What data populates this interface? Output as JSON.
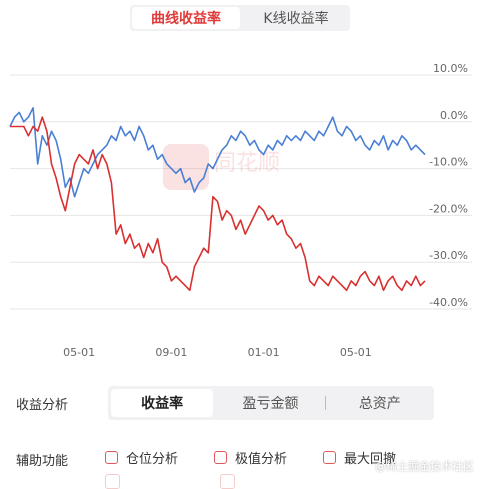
{
  "tabs": [
    {
      "label": "曲线收益率",
      "active": true
    },
    {
      "label": "K线收益率",
      "active": false
    }
  ],
  "chart_data": {
    "type": "line",
    "y_ticks": [
      "10.0%",
      "0.0%",
      "-10.0%",
      "-20.0%",
      "-30.0%",
      "-40.0%"
    ],
    "y_tick_values": [
      10,
      0,
      -10,
      -20,
      -30,
      -40
    ],
    "ylim": [
      -40,
      10
    ],
    "x_ticks": [
      "05-01",
      "09-01",
      "01-01",
      "05-01"
    ],
    "x_tick_positions": [
      3,
      7,
      11,
      15
    ],
    "xlim": [
      0,
      18
    ],
    "grid": true,
    "watermark_logo": "同花顺",
    "series": [
      {
        "color": "#4a7fd6",
        "x": [
          0,
          0.2,
          0.4,
          0.6,
          0.8,
          1.0,
          1.2,
          1.4,
          1.6,
          1.8,
          2.0,
          2.2,
          2.4,
          2.6,
          2.8,
          3.0,
          3.2,
          3.4,
          3.6,
          3.8,
          4.0,
          4.2,
          4.4,
          4.6,
          4.8,
          5.0,
          5.2,
          5.4,
          5.6,
          5.8,
          6.0,
          6.2,
          6.4,
          6.6,
          6.8,
          7.0,
          7.2,
          7.4,
          7.6,
          7.8,
          8.0,
          8.2,
          8.4,
          8.6,
          8.8,
          9.0,
          9.2,
          9.4,
          9.6,
          9.8,
          10.0,
          10.2,
          10.4,
          10.6,
          10.8,
          11.0,
          11.2,
          11.4,
          11.6,
          11.8,
          12.0,
          12.2,
          12.4,
          12.6,
          12.8,
          13.0,
          13.2,
          13.4,
          13.6,
          13.8,
          14.0,
          14.2,
          14.4,
          14.6,
          14.8,
          15.0,
          15.2,
          15.4,
          15.6,
          15.8,
          16.0,
          16.2,
          16.4,
          16.6,
          16.8,
          17.0,
          17.2,
          17.4,
          17.6,
          17.8,
          18.0
        ],
        "values": [
          -1,
          1,
          2,
          0,
          1,
          3,
          -9,
          -3,
          -5,
          -2,
          -4,
          -8,
          -14,
          -12,
          -16,
          -13,
          -10,
          -11,
          -9,
          -7,
          -6,
          -5,
          -3,
          -4,
          -1,
          -3,
          -2,
          -4,
          -1,
          -3,
          -6,
          -5,
          -8,
          -7,
          -9,
          -10,
          -11,
          -10,
          -13,
          -12,
          -15,
          -13,
          -12,
          -9,
          -10,
          -8,
          -6,
          -5,
          -3,
          -4,
          -2,
          -3,
          -5,
          -4,
          -6,
          -7,
          -5,
          -6,
          -4,
          -5,
          -3,
          -4,
          -3,
          -4,
          -2,
          -3,
          -4,
          -2,
          -3,
          -1,
          1,
          -2,
          -3,
          -1,
          -2,
          -4,
          -3,
          -5,
          -6,
          -4,
          -5,
          -3,
          -6,
          -4,
          -5,
          -3,
          -4,
          -6,
          -5,
          -6,
          -7
        ]
      },
      {
        "color": "#d93030",
        "x": [
          0,
          0.2,
          0.4,
          0.6,
          0.8,
          1.0,
          1.2,
          1.4,
          1.6,
          1.8,
          2.0,
          2.2,
          2.4,
          2.6,
          2.8,
          3.0,
          3.2,
          3.4,
          3.6,
          3.8,
          4.0,
          4.2,
          4.4,
          4.6,
          4.8,
          5.0,
          5.2,
          5.4,
          5.6,
          5.8,
          6.0,
          6.2,
          6.4,
          6.6,
          6.8,
          7.0,
          7.2,
          7.4,
          7.6,
          7.8,
          8.0,
          8.2,
          8.4,
          8.6,
          8.8,
          9.0,
          9.2,
          9.4,
          9.6,
          9.8,
          10.0,
          10.2,
          10.4,
          10.6,
          10.8,
          11.0,
          11.2,
          11.4,
          11.6,
          11.8,
          12.0,
          12.2,
          12.4,
          12.6,
          12.8,
          13.0,
          13.2,
          13.4,
          13.6,
          13.8,
          14.0,
          14.2,
          14.4,
          14.6,
          14.8,
          15.0,
          15.2,
          15.4,
          15.6,
          15.8,
          16.0,
          16.2,
          16.4,
          16.6,
          16.8,
          17.0,
          17.2,
          17.4,
          17.6,
          17.8,
          18.0
        ],
        "values": [
          -1,
          -1,
          -1,
          -1,
          -3,
          -1,
          -2,
          1,
          -2,
          -9,
          -12,
          -16,
          -19,
          -14,
          -9,
          -7,
          -8,
          -9,
          -6,
          -10,
          -7,
          -9,
          -13,
          -24,
          -22,
          -26,
          -24,
          -27,
          -26,
          -29,
          -26,
          -28,
          -25,
          -30,
          -31,
          -34,
          -33,
          -34,
          -35,
          -36,
          -31,
          -29,
          -27,
          -28,
          -16,
          -17,
          -21,
          -19,
          -20,
          -23,
          -21,
          -24,
          -22,
          -20,
          -18,
          -19,
          -21,
          -20,
          -22,
          -21,
          -24,
          -25,
          -27,
          -26,
          -29,
          -34,
          -35,
          -33,
          -34,
          -35,
          -33,
          -34,
          -35,
          -36,
          -34,
          -35,
          -33,
          -32,
          -34,
          -35,
          -33,
          -36,
          -34,
          -33,
          -35,
          -36,
          -34,
          -35,
          -33,
          -35,
          -34
        ]
      }
    ]
  },
  "analysis": {
    "label": "收益分析",
    "options": [
      {
        "label": "收益率",
        "active": true
      },
      {
        "label": "盈亏金额",
        "active": false
      },
      {
        "label": "总资产",
        "active": false
      }
    ]
  },
  "aux": {
    "label": "辅助功能",
    "options": [
      {
        "label": "仓位分析"
      },
      {
        "label": "极值分析"
      },
      {
        "label": "最大回撤"
      }
    ]
  },
  "watermark": "@稀土掘金技术社区",
  "colors": {
    "accent": "#e03a3a",
    "line_blue": "#4a7fd6",
    "line_red": "#d93030",
    "grid": "#e6e6e6"
  }
}
